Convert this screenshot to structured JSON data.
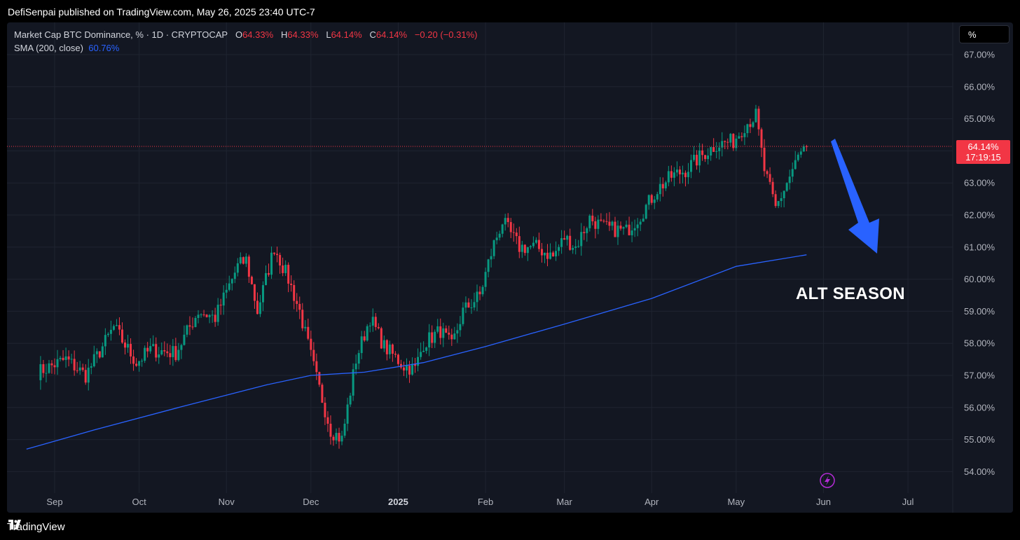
{
  "header": {
    "published": "DefiSenpai published on TradingView.com, May 26, 2025 23:40 UTC-7"
  },
  "legend": {
    "symbol": "Market Cap BTC Dominance, % · 1D · CRYPTOCAP",
    "o_label": "O",
    "o_value": "64.33%",
    "h_label": "H",
    "h_value": "64.33%",
    "l_label": "L",
    "l_value": "64.14%",
    "c_label": "C",
    "c_value": "64.14%",
    "change": "−0.20 (−0.31%)",
    "sma_label": "SMA (200, close)",
    "sma_value": "60.76%"
  },
  "scale_button": "%",
  "price_tag": {
    "price": "64.14%",
    "countdown": "17:19:15"
  },
  "annotation": "ALT SEASON",
  "footer": {
    "brand": "TradingView"
  },
  "colors": {
    "bg": "#131722",
    "up": "#089981",
    "down": "#f23645",
    "sma": "#2962ff",
    "arrow": "#2962ff",
    "grid": "#1f2430",
    "text": "#b2b5be"
  },
  "chart_data": {
    "type": "candlestick",
    "title": "Market Cap BTC Dominance, % · 1D · CRYPTOCAP",
    "ylabel": "%",
    "ylim": [
      53.5,
      67.5
    ],
    "y_ticks": [
      "67.00%",
      "66.00%",
      "65.00%",
      "64.00%",
      "63.00%",
      "62.00%",
      "61.00%",
      "60.00%",
      "59.00%",
      "58.00%",
      "57.00%",
      "56.00%",
      "55.00%",
      "54.00%"
    ],
    "x_ticks": [
      "Sep",
      "Oct",
      "Nov",
      "Dec",
      "2025",
      "Feb",
      "Mar",
      "Apr",
      "May",
      "Jun",
      "Jul"
    ],
    "last_price": 64.14,
    "series": [
      {
        "name": "Market Cap BTC Dominance",
        "close_anchors": [
          [
            "2024-08-26",
            57.1
          ],
          [
            "2024-09-05",
            57.5
          ],
          [
            "2024-09-12",
            57.0
          ],
          [
            "2024-09-22",
            58.5
          ],
          [
            "2024-09-30",
            57.4
          ],
          [
            "2024-10-05",
            57.8
          ],
          [
            "2024-10-14",
            57.7
          ],
          [
            "2024-10-22",
            59.0
          ],
          [
            "2024-10-28",
            58.8
          ],
          [
            "2024-11-05",
            60.4
          ],
          [
            "2024-11-08",
            60.6
          ],
          [
            "2024-11-12",
            59.0
          ],
          [
            "2024-11-18",
            61.0
          ],
          [
            "2024-11-23",
            60.0
          ],
          [
            "2024-11-27",
            59.0
          ],
          [
            "2024-12-03",
            56.9
          ],
          [
            "2024-12-08",
            55.3
          ],
          [
            "2024-12-12",
            55.0
          ],
          [
            "2024-12-17",
            57.5
          ],
          [
            "2024-12-22",
            58.8
          ],
          [
            "2024-12-27",
            57.9
          ],
          [
            "2025-01-03",
            57.3
          ],
          [
            "2025-01-07",
            57.2
          ],
          [
            "2025-01-10",
            58.0
          ],
          [
            "2025-01-16",
            58.4
          ],
          [
            "2025-01-20",
            57.9
          ],
          [
            "2025-01-24",
            59.0
          ],
          [
            "2025-01-30",
            59.5
          ],
          [
            "2025-02-02",
            60.5
          ],
          [
            "2025-02-04",
            61.1
          ],
          [
            "2025-02-07",
            61.8
          ],
          [
            "2025-02-13",
            61.0
          ],
          [
            "2025-02-19",
            61.0
          ],
          [
            "2025-02-25",
            60.7
          ],
          [
            "2025-03-01",
            61.3
          ],
          [
            "2025-03-05",
            61.0
          ],
          [
            "2025-03-10",
            61.9
          ],
          [
            "2025-03-15",
            61.6
          ],
          [
            "2025-03-23",
            61.5
          ],
          [
            "2025-03-28",
            62.0
          ],
          [
            "2025-04-03",
            62.8
          ],
          [
            "2025-04-08",
            63.2
          ],
          [
            "2025-04-13",
            63.4
          ],
          [
            "2025-04-18",
            63.8
          ],
          [
            "2025-04-24",
            64.2
          ],
          [
            "2025-04-30",
            64.3
          ],
          [
            "2025-05-04",
            64.8
          ],
          [
            "2025-05-08",
            65.1
          ],
          [
            "2025-05-11",
            63.4
          ],
          [
            "2025-05-15",
            62.2
          ],
          [
            "2025-05-19",
            63.0
          ],
          [
            "2025-05-23",
            63.8
          ],
          [
            "2025-05-26",
            64.14
          ]
        ]
      },
      {
        "name": "SMA (200, close)",
        "points": [
          [
            "2024-08-22",
            54.7
          ],
          [
            "2024-09-15",
            55.3
          ],
          [
            "2024-10-15",
            56.0
          ],
          [
            "2024-11-15",
            56.7
          ],
          [
            "2024-12-01",
            57.0
          ],
          [
            "2024-12-20",
            57.1
          ],
          [
            "2025-01-10",
            57.4
          ],
          [
            "2025-02-01",
            57.9
          ],
          [
            "2025-03-01",
            58.6
          ],
          [
            "2025-04-01",
            59.4
          ],
          [
            "2025-05-01",
            60.4
          ],
          [
            "2025-05-26",
            60.76
          ]
        ]
      }
    ]
  }
}
